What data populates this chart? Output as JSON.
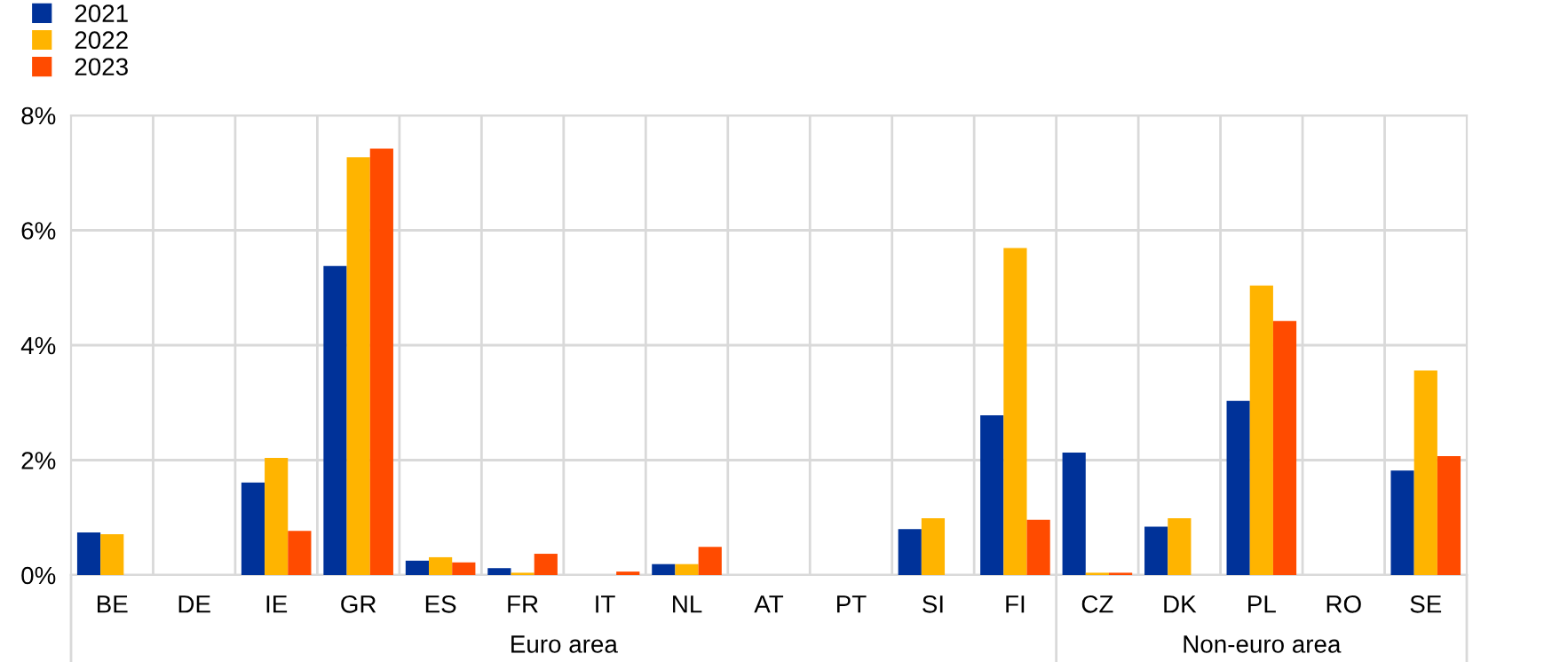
{
  "chart_data": {
    "type": "bar",
    "categories": [
      "BE",
      "DE",
      "IE",
      "GR",
      "ES",
      "FR",
      "IT",
      "NL",
      "AT",
      "PT",
      "SI",
      "FI",
      "CZ",
      "DK",
      "PL",
      "RO",
      "SE"
    ],
    "series": [
      {
        "name": "2021",
        "color": "#003299",
        "values": [
          0.74,
          0,
          1.61,
          5.38,
          0.25,
          0.12,
          0,
          0.19,
          0,
          0,
          0.8,
          2.78,
          2.13,
          0.84,
          3.03,
          0,
          1.82
        ]
      },
      {
        "name": "2022",
        "color": "#ffb400",
        "values": [
          0.71,
          0,
          2.04,
          7.27,
          0.31,
          0.04,
          0,
          0.19,
          0,
          0,
          0.99,
          5.69,
          0.04,
          0.99,
          5.04,
          0,
          3.56
        ]
      },
      {
        "name": "2023",
        "color": "#ff4b00",
        "values": [
          0,
          0,
          0.77,
          7.42,
          0.22,
          0.37,
          0.06,
          0.49,
          0,
          0,
          0,
          0.96,
          0.04,
          0,
          4.42,
          0,
          2.07
        ]
      }
    ],
    "ylim": [
      0,
      8
    ],
    "yticks": [
      {
        "value": 0,
        "label": "0%"
      },
      {
        "value": 2,
        "label": "2%"
      },
      {
        "value": 4,
        "label": "4%"
      },
      {
        "value": 6,
        "label": "6%"
      },
      {
        "value": 8,
        "label": "8%"
      }
    ],
    "grid": true,
    "legend": "top left",
    "annotations": [
      "Euro area",
      "Non-euro area"
    ]
  }
}
